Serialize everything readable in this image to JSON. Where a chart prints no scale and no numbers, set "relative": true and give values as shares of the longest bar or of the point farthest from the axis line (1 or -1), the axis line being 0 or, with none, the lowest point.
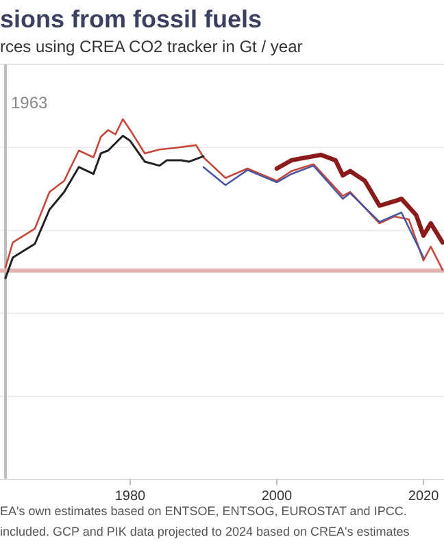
{
  "chart_data": {
    "type": "line",
    "title": "sions from fossil fuels",
    "subtitle": "rces using CREA CO2 tracker in Gt / year",
    "relative": true,
    "grid": "y",
    "line_style": "solid",
    "xlim": [
      1962.25,
      2022.8
    ],
    "xticks": [
      1980,
      2000,
      2020
    ],
    "series": [
      {
        "color": "#c8473b",
        "x": [
          1963,
          1964,
          1967,
          1969,
          1971,
          1973,
          1975,
          1976,
          1977,
          1978,
          1979,
          1980,
          1982,
          1984,
          1986,
          1989,
          1990,
          1993,
          1996,
          2000,
          2002,
          2005,
          2009,
          2010,
          2014,
          2016,
          2018,
          2020,
          2021,
          2022.6
        ],
        "values": [
          0.589,
          0.658,
          0.696,
          0.798,
          0.829,
          0.913,
          0.894,
          0.951,
          0.97,
          0.958,
          1,
          0.97,
          0.905,
          0.916,
          0.92,
          0.928,
          0.894,
          0.837,
          0.863,
          0.829,
          0.856,
          0.875,
          0.787,
          0.798,
          0.711,
          0.73,
          0.722,
          0.608,
          0.646,
          0.582
        ]
      },
      {
        "color": "#222222",
        "x": [
          1963,
          1964,
          1967,
          1969,
          1971,
          1973,
          1975,
          1976,
          1977,
          1979,
          1980,
          1982,
          1984,
          1985,
          1987,
          1988,
          1990
        ],
        "values": [
          0.559,
          0.616,
          0.654,
          0.749,
          0.798,
          0.867,
          0.848,
          0.905,
          0.913,
          0.954,
          0.94,
          0.882,
          0.871,
          0.886,
          0.886,
          0.882,
          0.897
        ]
      },
      {
        "color": "#4a56a0",
        "x": [
          1990,
          1993,
          1996,
          2000,
          2002,
          2005,
          2009,
          2010,
          2014,
          2017,
          2020
        ],
        "values": [
          0.867,
          0.817,
          0.859,
          0.825,
          0.848,
          0.871,
          0.779,
          0.795,
          0.715,
          0.741,
          0.616
        ]
      },
      {
        "color": "#8b1a1a",
        "x": [
          2000,
          2002,
          2006,
          2008,
          2009,
          2010,
          2012,
          2014,
          2016,
          2017,
          2019,
          2020,
          2021,
          2022.6
        ],
        "values": [
          0.863,
          0.886,
          0.901,
          0.886,
          0.844,
          0.856,
          0.829,
          0.76,
          0.772,
          0.779,
          0.734,
          0.677,
          0.711,
          0.658
        ]
      }
    ],
    "ref_lines": [
      {
        "axis": "x",
        "value": 1963,
        "label": "1963",
        "color": "#bbbbbb"
      },
      {
        "axis": "y",
        "value": 0.58,
        "color": "#e2b5b5"
      }
    ],
    "annotations": [
      "EA's own estimates based on ENTSOE, ENTSOG, EUROSTAT and IPCC.",
      "included. GCP and PIK data projected to 2024 based on CREA's estimates"
    ]
  }
}
